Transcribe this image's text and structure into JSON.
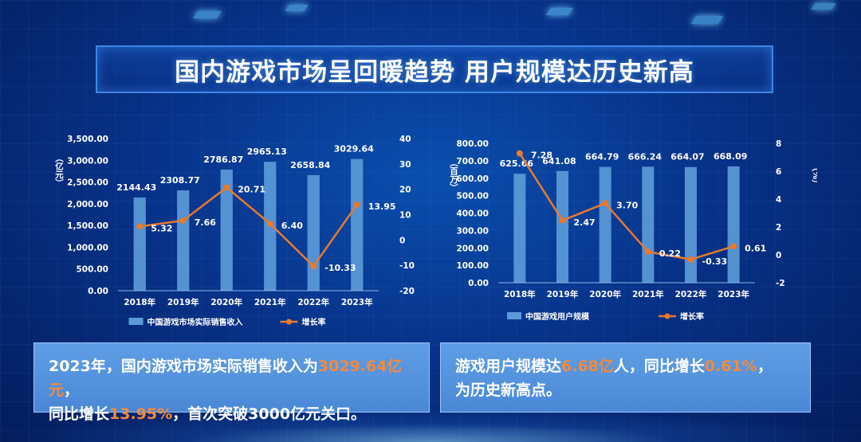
{
  "title": "国内游戏市场呈回暖趋势 用户规模达历史新高",
  "chart_data": [
    {
      "type": "bar",
      "categories": [
        "2018年",
        "2019年",
        "2020年",
        "2021年",
        "2022年",
        "2023年"
      ],
      "series": [
        {
          "name": "中国游戏市场实际销售收入",
          "kind": "bar",
          "axis": "left",
          "values": [
            2144.43,
            2308.77,
            2786.87,
            2965.13,
            2658.84,
            3029.64
          ],
          "labels": [
            "2144.43",
            "2308.77",
            "2786.87",
            "2965.13",
            "2658.84",
            "3029.64"
          ]
        },
        {
          "name": "增长率",
          "kind": "line",
          "axis": "right",
          "values": [
            5.32,
            7.66,
            20.71,
            6.4,
            -10.33,
            13.95
          ],
          "labels": [
            "5.32",
            "7.66",
            "20.71",
            "6.40",
            "-10.33",
            "13.95"
          ]
        }
      ],
      "ylabel": "（亿元）",
      "y2label": "（%）",
      "ylim": [
        0,
        3500
      ],
      "y2lim": [
        -20,
        40
      ],
      "yticks": [
        "0.00",
        "500.00",
        "1,000.00",
        "1,500.00",
        "2,000.00",
        "2,500.00",
        "3,000.00",
        "3,500.00"
      ],
      "y2ticks": [
        "-20",
        "-10",
        "0",
        "10",
        "20",
        "30",
        "40"
      ],
      "legend": "bottom"
    },
    {
      "type": "bar",
      "categories": [
        "2018年",
        "2019年",
        "2020年",
        "2021年",
        "2022年",
        "2023年"
      ],
      "series": [
        {
          "name": "中国游戏用户规模",
          "kind": "bar",
          "axis": "left",
          "values": [
            625.66,
            641.08,
            664.79,
            666.24,
            664.07,
            668.09
          ],
          "labels": [
            "625.66",
            "641.08",
            "664.79",
            "666.24",
            "664.07",
            "668.09"
          ]
        },
        {
          "name": "增长率",
          "kind": "line",
          "axis": "right",
          "values": [
            7.28,
            2.47,
            3.7,
            0.22,
            -0.33,
            0.61
          ],
          "labels": [
            "7.28",
            "2.47",
            "3.70",
            "0.22",
            "-0.33",
            "0.61"
          ]
        }
      ],
      "ylabel": "（百万）",
      "y2label": "（%）",
      "ylim": [
        0,
        800
      ],
      "y2lim": [
        -2,
        8
      ],
      "yticks": [
        "0.00",
        "100.00",
        "200.00",
        "300.00",
        "400.00",
        "500.00",
        "600.00",
        "700.00",
        "800.00"
      ],
      "y2ticks": [
        "-2",
        "0",
        "2",
        "4",
        "6",
        "8"
      ],
      "legend": "bottom"
    }
  ],
  "note_left": {
    "p1": "2023年，国内游戏市场实际销售收入为",
    "h1": "3029.64亿元",
    "p2": "，",
    "p3": "同比增长",
    "h2": "13.95%",
    "p4": "，首次突破3000亿元关口。"
  },
  "note_right": {
    "p1": "游戏用户规模达",
    "h1": "6.68亿",
    "p2": "人，同比增长",
    "h2": "0.61%",
    "p3": "，",
    "p4": "为历史新高点。"
  },
  "colors": {
    "bar": "#5b9ad8",
    "line": "#e87a2e",
    "text": "#ffffff"
  }
}
